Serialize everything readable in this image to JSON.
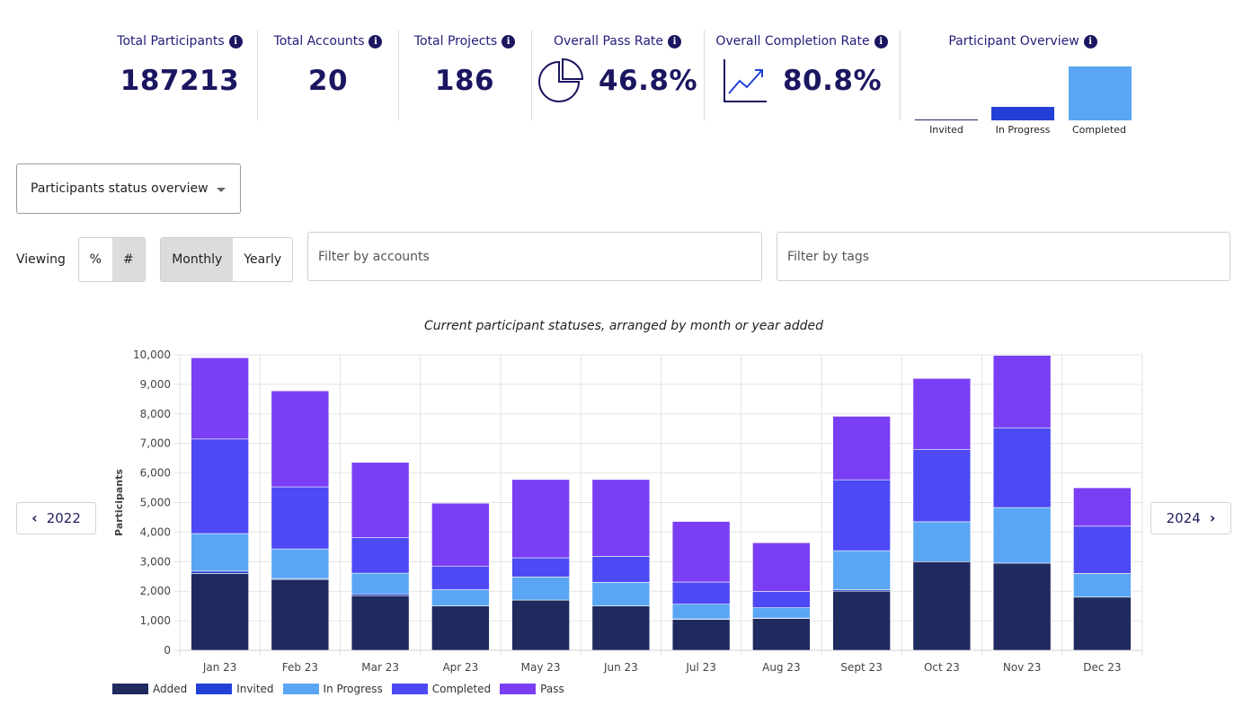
{
  "kpis": {
    "total_participants": {
      "title": "Total Participants",
      "value": "187213"
    },
    "total_accounts": {
      "title": "Total Accounts",
      "value": "20"
    },
    "total_projects": {
      "title": "Total Projects",
      "value": "186"
    },
    "pass_rate": {
      "title": "Overall Pass Rate",
      "value": "46.8%",
      "icon": "pie-chart-icon"
    },
    "completion_rate": {
      "title": "Overall Completion Rate",
      "value": "80.8%",
      "icon": "trending-up-icon"
    },
    "participant_overview": {
      "title": "Participant Overview",
      "bars": [
        {
          "label": "Invited",
          "fraction": 0.005,
          "color": "#1f2a5e"
        },
        {
          "label": "In Progress",
          "fraction": 0.25,
          "color": "#2340d6"
        },
        {
          "label": "Completed",
          "fraction": 1.0,
          "color": "#5aa6f5"
        }
      ]
    }
  },
  "info_glyph": "i",
  "controls": {
    "dropdown_value": "Participants status overview",
    "viewing_label": "Viewing",
    "mode_options": [
      "%",
      "#"
    ],
    "mode_selected": "#",
    "period_options": [
      "Monthly",
      "Yearly"
    ],
    "period_selected": "Monthly",
    "filter_accounts_placeholder": "Filter by accounts",
    "filter_tags_placeholder": "Filter by tags"
  },
  "nav": {
    "prev_label": "2022",
    "next_label": "2024"
  },
  "chart_data": {
    "type": "bar",
    "stacked": true,
    "title": "Current participant statuses, arranged by month or year added",
    "xlabel": "",
    "ylabel": "Participants",
    "ylim": [
      0,
      10000
    ],
    "yticks": [
      0,
      1000,
      2000,
      3000,
      4000,
      5000,
      6000,
      7000,
      8000,
      9000,
      10000
    ],
    "ytick_labels": [
      "0",
      "1,000",
      "2,000",
      "3,000",
      "4,000",
      "5,000",
      "6,000",
      "7,000",
      "8,000",
      "9,000",
      "10,000"
    ],
    "grid": true,
    "legend_position": "bottom-left",
    "categories": [
      "Jan 23",
      "Feb 23",
      "Mar 23",
      "Apr 23",
      "May 23",
      "Jun 23",
      "Jul 23",
      "Aug 23",
      "Sept 23",
      "Oct 23",
      "Nov 23",
      "Dec 23"
    ],
    "series": [
      {
        "name": "Added",
        "color": "#1f2a5e",
        "values": [
          2600,
          2400,
          1850,
          1500,
          1700,
          1500,
          1050,
          1080,
          2000,
          3000,
          2950,
          1800
        ]
      },
      {
        "name": "Invited",
        "color": "#2340d6",
        "values": [
          80,
          30,
          60,
          0,
          0,
          0,
          10,
          10,
          50,
          0,
          0,
          0
        ]
      },
      {
        "name": "In Progress",
        "color": "#5aa6f5",
        "values": [
          1270,
          1000,
          700,
          550,
          780,
          800,
          500,
          350,
          1320,
          1350,
          1880,
          800
        ]
      },
      {
        "name": "Completed",
        "color": "#4d49f5",
        "values": [
          3200,
          2100,
          1200,
          800,
          650,
          880,
          750,
          550,
          2400,
          2450,
          2700,
          1600
        ]
      },
      {
        "name": "Pass",
        "color": "#7a3ff4",
        "values": [
          2750,
          3250,
          2550,
          2130,
          2650,
          2600,
          2050,
          1650,
          2150,
          2400,
          2450,
          1300
        ]
      }
    ]
  }
}
